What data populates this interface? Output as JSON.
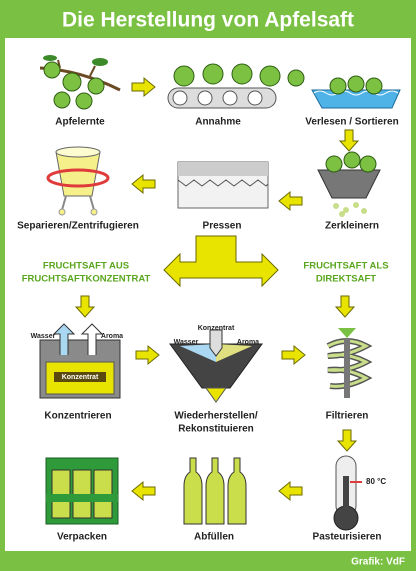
{
  "header": {
    "title": "Die Herstellung von Apfelsaft"
  },
  "steps": [
    {
      "label": "Apfelernte"
    },
    {
      "label": "Annahme"
    },
    {
      "label": "Verlesen / Sortieren"
    },
    {
      "label": "Zerkleinern"
    },
    {
      "label": "Pressen"
    },
    {
      "label": "Separieren/Zentrifugieren"
    },
    {
      "label": "Konzentrieren",
      "parts": [
        "Wasser",
        "Aroma",
        "Konzentrat"
      ]
    },
    {
      "lines": [
        "Wiederherstellen/",
        "Rekonstituieren"
      ],
      "parts": [
        "Konzentrat",
        "Wasser",
        "Aroma"
      ]
    },
    {
      "label": "Filtrieren"
    },
    {
      "label": "Pasteurisieren",
      "temperature": "80 °C"
    },
    {
      "label": "Abfüllen"
    },
    {
      "label": "Verpacken"
    }
  ],
  "branches": [
    {
      "lines": [
        "FRUCHTSAFT AUS",
        "FRUCHTSAFTKONZENTRAT"
      ]
    },
    {
      "lines": [
        "FRUCHTSAFT ALS",
        "DIREKTSAFT"
      ]
    }
  ],
  "footer": {
    "credit": "Grafik: VdF"
  }
}
